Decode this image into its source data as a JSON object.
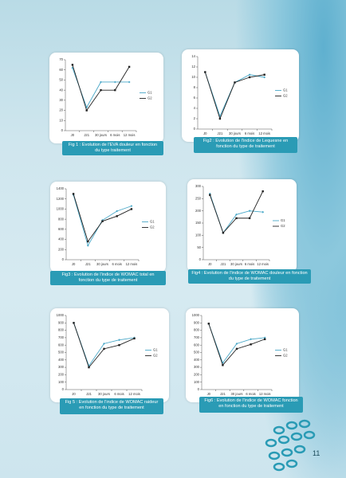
{
  "page_number": "11",
  "chart_data": [
    {
      "type": "line",
      "caption": "Fig 1 : Evolution de l'EVA douleur en fonction du type traitement",
      "categories": [
        "J0",
        "J21",
        "30 jours",
        "6 mois",
        "12 mois"
      ],
      "ylim": [
        0,
        70
      ],
      "yticks": [
        0,
        10,
        20,
        30,
        40,
        50,
        60,
        70
      ],
      "series": [
        {
          "name": "G1",
          "color": "#4aa8c8",
          "values": [
            62,
            23,
            48,
            48,
            48
          ]
        },
        {
          "name": "G2",
          "color": "#222222",
          "values": [
            65,
            20,
            40,
            40,
            63
          ]
        }
      ]
    },
    {
      "type": "line",
      "caption": "Fig2 : Evolution de l'indice de Lequesne en fonction du type de traitement",
      "categories": [
        "J0",
        "J21",
        "30 jours",
        "6 mois",
        "12 mois"
      ],
      "ylim": [
        0,
        14
      ],
      "yticks": [
        0,
        2,
        4,
        6,
        8,
        10,
        12,
        14
      ],
      "series": [
        {
          "name": "G1",
          "color": "#4aa8c8",
          "values": [
            11,
            2.5,
            9,
            10.5,
            10
          ]
        },
        {
          "name": "G2",
          "color": "#222222",
          "values": [
            11,
            2,
            9,
            10,
            10.5
          ]
        }
      ]
    },
    {
      "type": "line",
      "caption": "Fig3 : Evolution de l'indice de WOMAC total en fonction du type de traitement",
      "categories": [
        "J0",
        "J21",
        "30 jours",
        "6 mois",
        "12 mois"
      ],
      "ylim": [
        0,
        1400
      ],
      "yticks": [
        0,
        200,
        400,
        600,
        800,
        1000,
        1200,
        1400
      ],
      "series": [
        {
          "name": "G1",
          "color": "#4aa8c8",
          "values": [
            1280,
            280,
            780,
            960,
            1060
          ]
        },
        {
          "name": "G2",
          "color": "#222222",
          "values": [
            1300,
            360,
            760,
            860,
            1000
          ]
        }
      ]
    },
    {
      "type": "line",
      "caption": "Fig4 : Evolution de l'indice de WOMAC douleur en fonction du type de traitement",
      "categories": [
        "J0",
        "J21",
        "30 jours",
        "6 mois",
        "12 mois"
      ],
      "ylim": [
        0,
        300
      ],
      "yticks": [
        0,
        50,
        100,
        150,
        200,
        250,
        300
      ],
      "series": [
        {
          "name": "G1",
          "color": "#4aa8c8",
          "values": [
            270,
            110,
            185,
            200,
            195
          ]
        },
        {
          "name": "G2",
          "color": "#222222",
          "values": [
            265,
            110,
            170,
            170,
            280
          ]
        }
      ]
    },
    {
      "type": "line",
      "caption": "Fig 5 : Evolution de l'indice de WOMAC raideur en fonction du type de traitement",
      "categories": [
        "J0",
        "J21",
        "30 jours",
        "6 mois",
        "12 mois"
      ],
      "ylim": [
        0,
        1000
      ],
      "yticks": [
        0,
        100,
        200,
        300,
        400,
        500,
        600,
        700,
        800,
        900,
        1000
      ],
      "series": [
        {
          "name": "G1",
          "color": "#4aa8c8",
          "values": [
            900,
            320,
            620,
            670,
            700
          ]
        },
        {
          "name": "G2",
          "color": "#222222",
          "values": [
            900,
            300,
            550,
            600,
            690
          ]
        }
      ]
    },
    {
      "type": "line",
      "caption": "Fig6 : Evolution de l'indice de WOMAC fonction en fonction du type de traitement",
      "categories": [
        "J0",
        "J21",
        "30 jours",
        "6 mois",
        "12 mois"
      ],
      "ylim": [
        0,
        1000
      ],
      "yticks": [
        0,
        100,
        200,
        300,
        400,
        500,
        600,
        700,
        800,
        900,
        1000
      ],
      "series": [
        {
          "name": "G1",
          "color": "#4aa8c8",
          "values": [
            890,
            360,
            620,
            680,
            700
          ]
        },
        {
          "name": "G2",
          "color": "#222222",
          "values": [
            890,
            330,
            550,
            610,
            680
          ]
        }
      ]
    }
  ]
}
